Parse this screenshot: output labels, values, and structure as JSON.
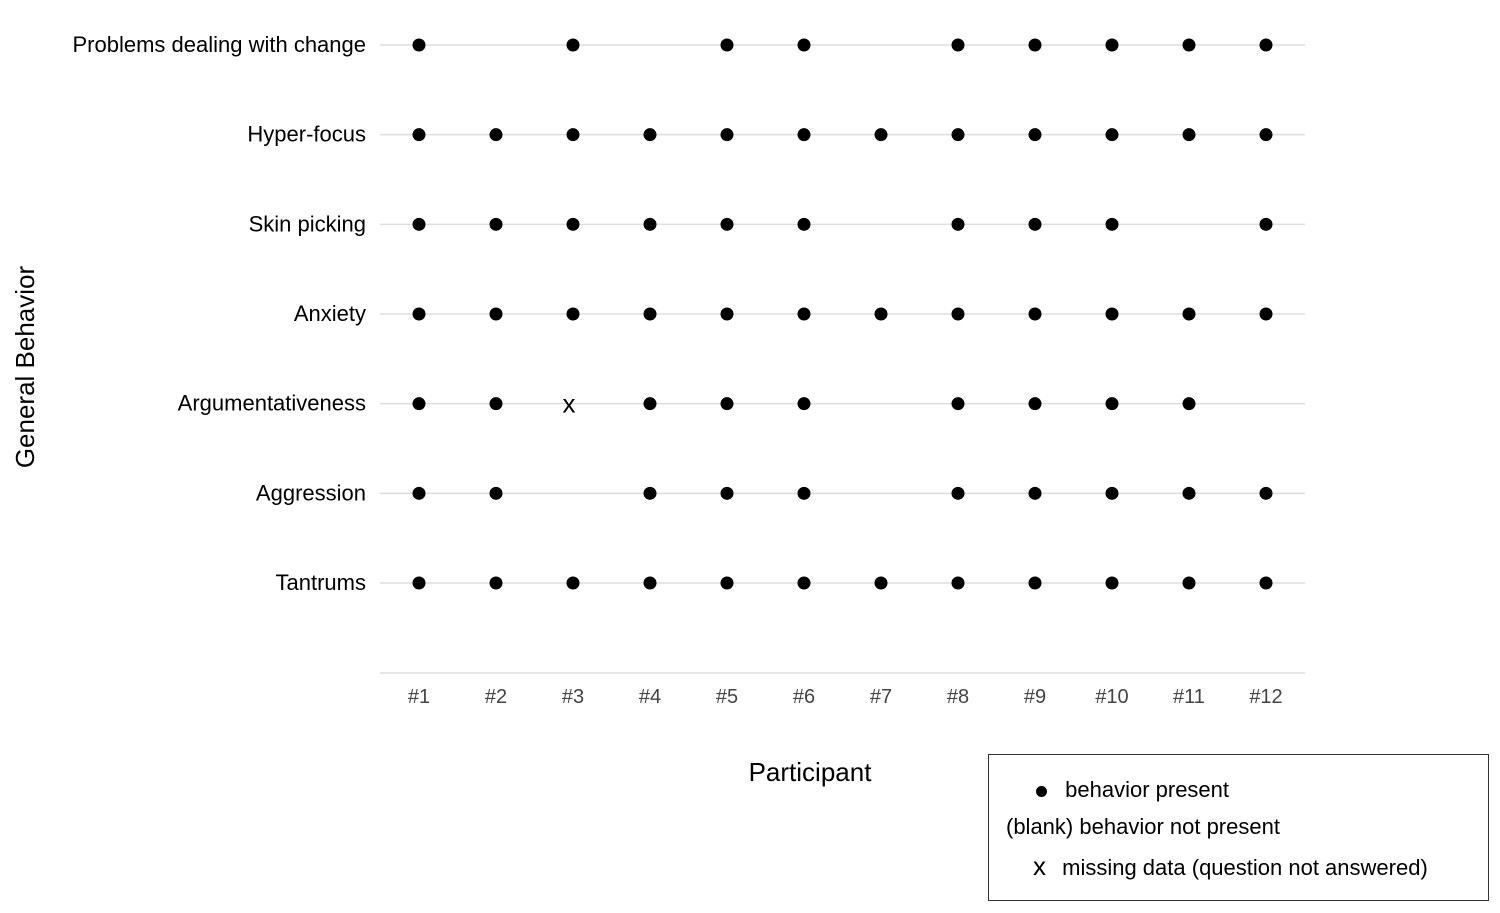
{
  "chart_data": {
    "type": "scatter",
    "title": "",
    "xlabel": "Participant",
    "ylabel": "General Behavior",
    "categories": [
      "#1",
      "#2",
      "#3",
      "#4",
      "#5",
      "#6",
      "#7",
      "#8",
      "#9",
      "#10",
      "#11",
      "#12"
    ],
    "rows": [
      {
        "label": "Problems dealing with change",
        "values": [
          1,
          0,
          1,
          0,
          1,
          1,
          0,
          1,
          1,
          1,
          1,
          1
        ]
      },
      {
        "label": "Hyper-focus",
        "values": [
          1,
          1,
          1,
          1,
          1,
          1,
          1,
          1,
          1,
          1,
          1,
          1
        ]
      },
      {
        "label": "Skin picking",
        "values": [
          1,
          1,
          1,
          1,
          1,
          1,
          0,
          1,
          1,
          1,
          0,
          1
        ]
      },
      {
        "label": "Anxiety",
        "values": [
          1,
          1,
          1,
          1,
          1,
          1,
          1,
          1,
          1,
          1,
          1,
          1
        ]
      },
      {
        "label": "Argumentativeness",
        "values": [
          1,
          1,
          "x",
          1,
          1,
          1,
          0,
          1,
          1,
          1,
          1,
          0
        ]
      },
      {
        "label": "Aggression",
        "values": [
          1,
          1,
          0,
          1,
          1,
          1,
          0,
          1,
          1,
          1,
          1,
          1
        ]
      },
      {
        "label": "Tantrums",
        "values": [
          1,
          1,
          1,
          1,
          1,
          1,
          1,
          1,
          1,
          1,
          1,
          1
        ]
      }
    ],
    "grid": true,
    "legend_position": "bottom-right",
    "colors": {
      "marker": "#000000",
      "grid": "#dddddd"
    }
  },
  "legend": {
    "present": {
      "symbol": "●",
      "label": "behavior present"
    },
    "blank": {
      "symbol": "(blank)",
      "label": "behavior not present"
    },
    "missing": {
      "symbol": "x",
      "label": "missing data (question not answered)"
    }
  }
}
